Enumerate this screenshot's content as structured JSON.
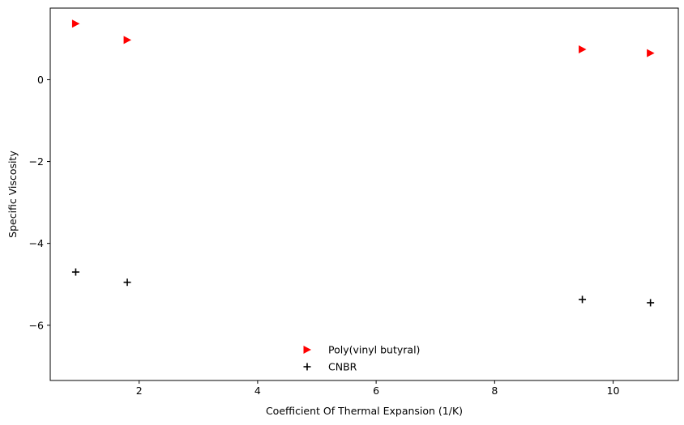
{
  "chart_data": {
    "type": "scatter",
    "xlabel": "Coefficient Of Thermal Expansion (1/K)",
    "ylabel": "Specific Viscosity",
    "xlim": [
      0.5,
      11.1
    ],
    "ylim": [
      -7.35,
      1.75
    ],
    "xticks": [
      2,
      4,
      6,
      8,
      10
    ],
    "yticks": [
      0,
      -2,
      -4,
      -6
    ],
    "xtick_labels": [
      "2",
      "4",
      "6",
      "8",
      "10"
    ],
    "ytick_labels": [
      "0",
      "−2",
      "−4",
      "−6"
    ],
    "grid": false,
    "legend_position": "bottom-center",
    "series": [
      {
        "name": "Poly(vinyl butyral)",
        "marker": "triangle-right",
        "color": "#ff0000",
        "x": [
          0.93,
          1.8,
          9.48,
          10.63
        ],
        "y": [
          1.37,
          0.97,
          0.74,
          0.65
        ]
      },
      {
        "name": "CNBR",
        "marker": "plus",
        "color": "#000000",
        "x": [
          0.93,
          1.8,
          9.48,
          10.63
        ],
        "y": [
          -4.7,
          -4.95,
          -5.37,
          -5.45
        ]
      }
    ]
  }
}
